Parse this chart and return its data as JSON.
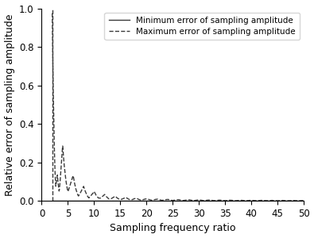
{
  "title": "",
  "xlabel": "Sampling frequency ratio",
  "ylabel": "Relative error of sampling amplitude",
  "xlim": [
    0,
    50
  ],
  "ylim": [
    0,
    1.0
  ],
  "xticks": [
    0,
    5,
    10,
    15,
    20,
    25,
    30,
    35,
    40,
    45,
    50
  ],
  "yticks": [
    0.0,
    0.2,
    0.4,
    0.6,
    0.8,
    1.0
  ],
  "line_color": "#3a3a3a",
  "legend_min": "Minimum error of sampling amplitude",
  "legend_max": "Maximum error of sampling amplitude",
  "figsize": [
    3.95,
    3.0
  ],
  "dpi": 100
}
